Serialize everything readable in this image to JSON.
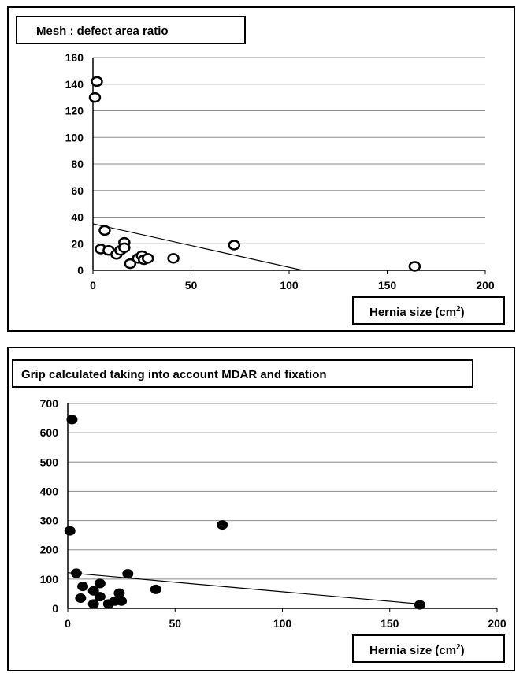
{
  "chart_data": [
    {
      "type": "scatter",
      "title": "Mesh : defect area ratio",
      "xlabel": "Hernia size (cm",
      "xlabel_sup": "2",
      "xlabel_end": ")",
      "xlim": [
        0,
        200
      ],
      "ylim": [
        0,
        160
      ],
      "xticks": [
        0,
        50,
        100,
        150,
        200
      ],
      "yticks": [
        0,
        20,
        40,
        60,
        80,
        100,
        120,
        140,
        160
      ],
      "grid": "horizontal",
      "marker": "open-circle",
      "points": [
        {
          "x": 2,
          "y": 142
        },
        {
          "x": 1,
          "y": 130
        },
        {
          "x": 6,
          "y": 30
        },
        {
          "x": 4,
          "y": 16
        },
        {
          "x": 8,
          "y": 15
        },
        {
          "x": 12,
          "y": 12
        },
        {
          "x": 14,
          "y": 15
        },
        {
          "x": 16,
          "y": 21
        },
        {
          "x": 16,
          "y": 17
        },
        {
          "x": 19,
          "y": 5
        },
        {
          "x": 23,
          "y": 9
        },
        {
          "x": 25,
          "y": 11
        },
        {
          "x": 26,
          "y": 8
        },
        {
          "x": 28,
          "y": 9
        },
        {
          "x": 41,
          "y": 9
        },
        {
          "x": 72,
          "y": 19
        },
        {
          "x": 164,
          "y": 3
        }
      ],
      "trendline": {
        "x": [
          0,
          107
        ],
        "y": [
          35,
          0
        ]
      }
    },
    {
      "type": "scatter",
      "title": "Grip calculated taking into account MDAR and fixation",
      "xlabel": "Hernia size (cm",
      "xlabel_sup": "2",
      "xlabel_end": ")",
      "xlim": [
        0,
        200
      ],
      "ylim": [
        0,
        700
      ],
      "xticks": [
        0,
        50,
        100,
        150,
        200
      ],
      "yticks": [
        0,
        100,
        200,
        300,
        400,
        500,
        600,
        700
      ],
      "grid": "horizontal",
      "marker": "filled-circle",
      "points": [
        {
          "x": 2,
          "y": 645
        },
        {
          "x": 1,
          "y": 265
        },
        {
          "x": 4,
          "y": 120
        },
        {
          "x": 7,
          "y": 75
        },
        {
          "x": 6,
          "y": 35
        },
        {
          "x": 12,
          "y": 60
        },
        {
          "x": 12,
          "y": 15
        },
        {
          "x": 15,
          "y": 85
        },
        {
          "x": 15,
          "y": 40
        },
        {
          "x": 19,
          "y": 15
        },
        {
          "x": 22,
          "y": 25
        },
        {
          "x": 24,
          "y": 52
        },
        {
          "x": 25,
          "y": 25
        },
        {
          "x": 28,
          "y": 118
        },
        {
          "x": 41,
          "y": 65
        },
        {
          "x": 72,
          "y": 285
        },
        {
          "x": 164,
          "y": 12
        }
      ],
      "trendline": {
        "x": [
          0,
          164
        ],
        "y": [
          122,
          15
        ]
      }
    }
  ]
}
